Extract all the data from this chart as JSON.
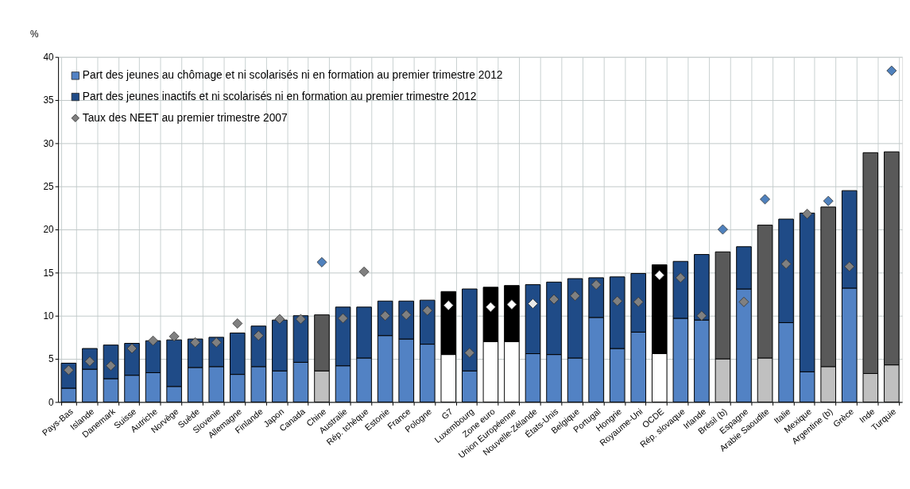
{
  "chart_data": {
    "type": "bar",
    "stacked": true,
    "ylabel": "%",
    "ylim": [
      0,
      40
    ],
    "yticks": [
      0,
      5,
      10,
      15,
      20,
      25,
      30,
      35,
      40
    ],
    "grid": true,
    "legend": "top left",
    "categories": [
      "Pays-Bas",
      "Islande",
      "Danemark",
      "Suisse",
      "Autriche",
      "Norvège",
      "Suède",
      "Slovenie",
      "Allemagne",
      "Finlande",
      "Japon",
      "Canada",
      "Chine",
      "Australie",
      "Rép. tchèque",
      "Estonie",
      "France",
      "Pologne",
      "G7",
      "Luxembourg",
      "Zone euro",
      "Union Européenne",
      "Nouvelle-Zélande",
      "États-Unis",
      "Belgique",
      "Portugal",
      "Hongrie",
      "Royaume-Uni",
      "OCDE",
      "Rép. slovaque",
      "Irlande",
      "Brésil (b)",
      "Espagne",
      "Arabie Saoudite",
      "Italie",
      "Mexique",
      "Argentine (b)",
      "Grèce",
      "Inde",
      "Turquie"
    ],
    "series": [
      {
        "name": "Part des jeunes au chômage et ni scolarisés ni en formation au premier trimestre 2012",
        "color": "#5282c4",
        "values": [
          1.6,
          3.8,
          2.7,
          3.1,
          3.4,
          1.8,
          4.0,
          4.1,
          3.2,
          4.1,
          3.6,
          4.6,
          3.6,
          4.2,
          5.1,
          7.7,
          7.3,
          6.7,
          5.5,
          3.6,
          7.0,
          7.0,
          5.6,
          5.5,
          5.1,
          9.8,
          6.2,
          8.1,
          5.6,
          9.7,
          9.5,
          5.0,
          13.1,
          5.1,
          9.2,
          3.5,
          4.1,
          13.2,
          3.3,
          4.3
        ],
        "colors": [
          "#5282c4",
          "#5282c4",
          "#5282c4",
          "#5282c4",
          "#5282c4",
          "#5282c4",
          "#5282c4",
          "#5282c4",
          "#5282c4",
          "#5282c4",
          "#5282c4",
          "#5282c4",
          "#c0c0c0",
          "#5282c4",
          "#5282c4",
          "#5282c4",
          "#5282c4",
          "#5282c4",
          "#ffffff",
          "#5282c4",
          "#ffffff",
          "#ffffff",
          "#5282c4",
          "#5282c4",
          "#5282c4",
          "#5282c4",
          "#5282c4",
          "#5282c4",
          "#ffffff",
          "#5282c4",
          "#5282c4",
          "#c0c0c0",
          "#5282c4",
          "#c0c0c0",
          "#5282c4",
          "#5282c4",
          "#c0c0c0",
          "#5282c4",
          "#c0c0c0",
          "#c0c0c0"
        ]
      },
      {
        "name": "Part des jeunes inactifs et ni scolarisés ni en formation au premier trimestre 2012",
        "color": "#1f4b87",
        "values": [
          2.9,
          2.4,
          3.9,
          3.7,
          3.7,
          5.4,
          3.3,
          3.4,
          4.8,
          4.7,
          5.9,
          5.4,
          6.5,
          6.8,
          5.9,
          4.0,
          4.4,
          5.1,
          7.3,
          9.5,
          6.3,
          6.5,
          8.0,
          8.4,
          9.2,
          4.6,
          8.3,
          6.8,
          10.3,
          6.6,
          7.6,
          12.4,
          4.9,
          15.4,
          12.0,
          18.4,
          18.5,
          11.3,
          25.6,
          24.7
        ],
        "colors": [
          "#1f4b87",
          "#1f4b87",
          "#1f4b87",
          "#1f4b87",
          "#1f4b87",
          "#1f4b87",
          "#1f4b87",
          "#1f4b87",
          "#1f4b87",
          "#1f4b87",
          "#1f4b87",
          "#1f4b87",
          "#595959",
          "#1f4b87",
          "#1f4b87",
          "#1f4b87",
          "#1f4b87",
          "#1f4b87",
          "#000000",
          "#1f4b87",
          "#000000",
          "#000000",
          "#1f4b87",
          "#1f4b87",
          "#1f4b87",
          "#1f4b87",
          "#1f4b87",
          "#1f4b87",
          "#000000",
          "#1f4b87",
          "#1f4b87",
          "#595959",
          "#1f4b87",
          "#595959",
          "#1f4b87",
          "#1f4b87",
          "#595959",
          "#1f4b87",
          "#595959",
          "#595959"
        ]
      },
      {
        "name": "Taux des NEET au premier trimestre 2007",
        "type": "scatter",
        "marker": "diamond",
        "color": "#808080",
        "values": [
          3.7,
          4.7,
          4.2,
          6.2,
          7.1,
          7.6,
          6.9,
          6.9,
          9.1,
          7.7,
          9.6,
          9.6,
          16.2,
          9.7,
          15.1,
          10.0,
          10.1,
          10.6,
          11.2,
          5.7,
          11.0,
          11.3,
          11.4,
          11.9,
          12.3,
          13.6,
          11.7,
          11.6,
          14.7,
          14.4,
          10.0,
          20.0,
          11.6,
          23.5,
          16.0,
          21.8,
          23.3,
          15.7,
          null,
          38.4
        ],
        "colors": [
          "#808080",
          "#808080",
          "#808080",
          "#808080",
          "#808080",
          "#808080",
          "#808080",
          "#808080",
          "#808080",
          "#808080",
          "#808080",
          "#808080",
          "#4f81bd",
          "#808080",
          "#808080",
          "#808080",
          "#808080",
          "#808080",
          "#ffffff",
          "#808080",
          "#ffffff",
          "#ffffff",
          "#e8e8e8",
          "#808080",
          "#808080",
          "#808080",
          "#808080",
          "#808080",
          "#ffffff",
          "#808080",
          "#808080",
          "#4f81bd",
          "#808080",
          "#4f81bd",
          "#808080",
          "#808080",
          "#4f81bd",
          "#808080",
          "#808080",
          "#4f81bd"
        ]
      }
    ]
  }
}
